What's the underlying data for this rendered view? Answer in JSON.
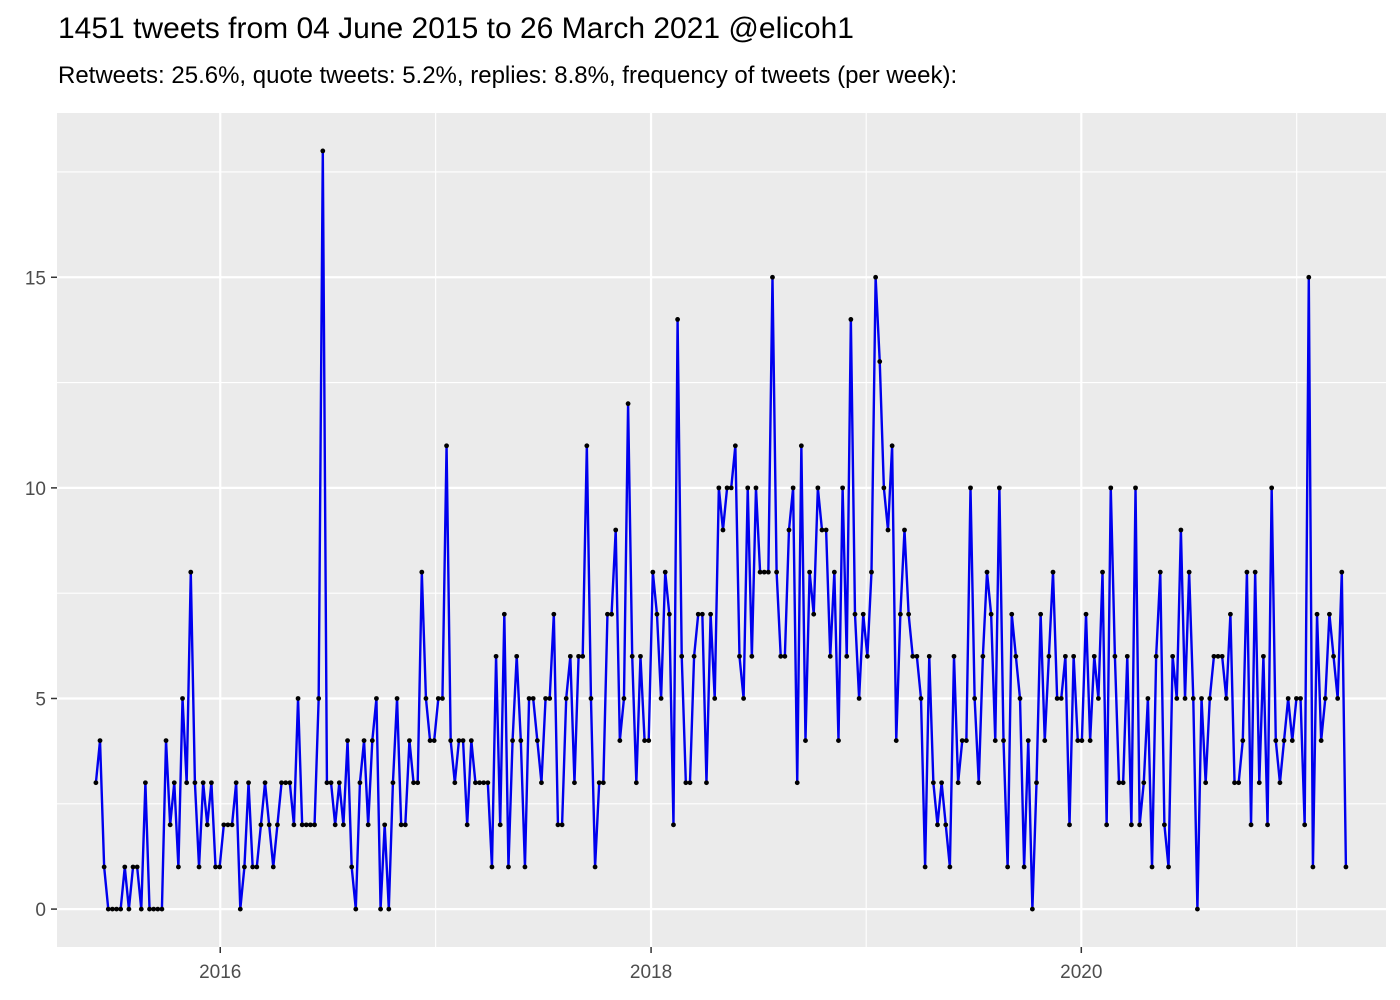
{
  "chart_data": {
    "type": "line",
    "title": "1451 tweets from 04 June 2015 to 26 March 2021 @elicoh1",
    "subtitle": "Retweets: 25.6%, quote tweets: 5.2%, replies: 8.8%, frequency of tweets (per week):",
    "xlabel": "",
    "ylabel": "",
    "x_unit": "weeks (weekly counts starting week of 04 June 2015)",
    "x_ticks": [
      {
        "label": "2016",
        "date": "2016-01-01"
      },
      {
        "label": "2018",
        "date": "2018-01-01"
      },
      {
        "label": "2020",
        "date": "2020-01-01"
      }
    ],
    "y_ticks": [
      0,
      5,
      10,
      15
    ],
    "xlim": [
      "2015-03-30",
      "2021-06-01"
    ],
    "ylim": [
      -0.9,
      18.9
    ],
    "grid": true,
    "line_color": "#0000ee",
    "point_color": "#000000",
    "panel_background": "#ebebeb",
    "start_date": "2015-06-04",
    "values": [
      3,
      4,
      1,
      0,
      0,
      0,
      0,
      1,
      0,
      1,
      1,
      0,
      3,
      0,
      0,
      0,
      0,
      4,
      2,
      3,
      1,
      5,
      3,
      8,
      3,
      1,
      3,
      2,
      3,
      1,
      1,
      2,
      2,
      2,
      3,
      0,
      1,
      3,
      1,
      1,
      2,
      3,
      2,
      1,
      2,
      3,
      3,
      3,
      2,
      5,
      2,
      2,
      2,
      2,
      5,
      18,
      3,
      3,
      2,
      3,
      2,
      4,
      1,
      0,
      3,
      4,
      2,
      4,
      5,
      0,
      2,
      0,
      3,
      5,
      2,
      2,
      4,
      3,
      3,
      8,
      5,
      4,
      4,
      5,
      5,
      11,
      4,
      3,
      4,
      4,
      2,
      4,
      3,
      3,
      3,
      3,
      1,
      6,
      2,
      7,
      1,
      4,
      6,
      4,
      1,
      5,
      5,
      4,
      3,
      5,
      5,
      7,
      2,
      2,
      5,
      6,
      3,
      6,
      6,
      11,
      5,
      1,
      3,
      3,
      7,
      7,
      9,
      4,
      5,
      12,
      6,
      3,
      6,
      4,
      4,
      8,
      7,
      5,
      8,
      7,
      2,
      14,
      6,
      3,
      3,
      6,
      7,
      7,
      3,
      7,
      5,
      10,
      9,
      10,
      10,
      11,
      6,
      5,
      10,
      6,
      10,
      8,
      8,
      8,
      15,
      8,
      6,
      6,
      9,
      10,
      3,
      11,
      4,
      8,
      7,
      10,
      9,
      9,
      6,
      8,
      4,
      10,
      6,
      14,
      7,
      5,
      7,
      6,
      8,
      15,
      13,
      10,
      9,
      11,
      4,
      7,
      9,
      7,
      6,
      6,
      5,
      1,
      6,
      3,
      2,
      3,
      2,
      1,
      6,
      3,
      4,
      4,
      10,
      5,
      3,
      6,
      8,
      7,
      4,
      10,
      4,
      1,
      7,
      6,
      5,
      1,
      4,
      0,
      3,
      7,
      4,
      6,
      8,
      5,
      5,
      6,
      2,
      6,
      4,
      4,
      7,
      4,
      6,
      5,
      8,
      2,
      10,
      6,
      3,
      3,
      6,
      2,
      10,
      2,
      3,
      5,
      1,
      6,
      8,
      2,
      1,
      6,
      5,
      9,
      5,
      8,
      5,
      0,
      5,
      3,
      5,
      6,
      6,
      6,
      5,
      7,
      3,
      3,
      4,
      8,
      2,
      8,
      3,
      6,
      2,
      10,
      4,
      3,
      4,
      5,
      4,
      5,
      5,
      2,
      15,
      1,
      7,
      4,
      5,
      7,
      6,
      5,
      8,
      1
    ]
  }
}
